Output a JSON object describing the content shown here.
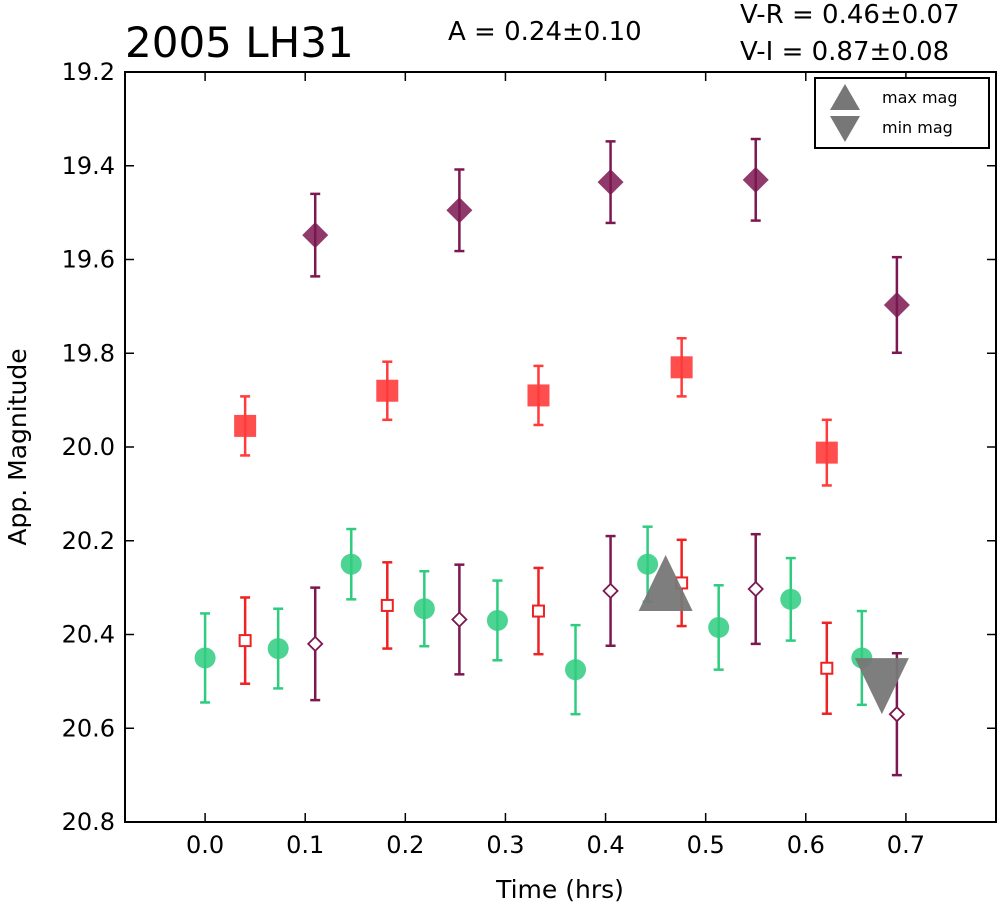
{
  "chart_data": {
    "type": "scatter",
    "title": "2005 LH31",
    "annotations": {
      "amplitude": "A  = 0.24±0.10",
      "color_vr": "V-R = 0.46±0.07",
      "color_vi": "V-I  = 0.87±0.08"
    },
    "xlabel": "Time (hrs)",
    "ylabel": "App. Magnitude",
    "xlim": [
      -0.08,
      0.79
    ],
    "ylim": [
      20.8,
      19.2
    ],
    "y_inverted": true,
    "grid": false,
    "legend_position": "top-right",
    "x_ticks": [
      "0.0",
      "0.1",
      "0.2",
      "0.3",
      "0.4",
      "0.5",
      "0.6",
      "0.7"
    ],
    "y_ticks": [
      "19.2",
      "19.4",
      "19.6",
      "19.8",
      "20.0",
      "20.2",
      "20.4",
      "20.6",
      "20.8"
    ],
    "legend": [
      {
        "label": "max mag",
        "marker": "triangle-up"
      },
      {
        "label": "min mag",
        "marker": "triangle-down"
      }
    ],
    "series": [
      {
        "key": "v_filter",
        "marker": "circle",
        "filled": true,
        "color": "#2ecc7f",
        "points": [
          {
            "x": 0.0,
            "y": 20.45,
            "err": 0.095
          },
          {
            "x": 0.073,
            "y": 20.43,
            "err": 0.085
          },
          {
            "x": 0.146,
            "y": 20.25,
            "err": 0.075
          },
          {
            "x": 0.219,
            "y": 20.345,
            "err": 0.08
          },
          {
            "x": 0.292,
            "y": 20.37,
            "err": 0.085
          },
          {
            "x": 0.37,
            "y": 20.475,
            "err": 0.095
          },
          {
            "x": 0.442,
            "y": 20.25,
            "err": 0.08
          },
          {
            "x": 0.513,
            "y": 20.385,
            "err": 0.09
          },
          {
            "x": 0.585,
            "y": 20.325,
            "err": 0.088
          },
          {
            "x": 0.656,
            "y": 20.45,
            "err": 0.1
          }
        ]
      },
      {
        "key": "r_filter_filled",
        "marker": "square",
        "filled": true,
        "color": "#ff3b3b",
        "points": [
          {
            "x": 0.04,
            "y": 19.955,
            "err": 0.063
          },
          {
            "x": 0.182,
            "y": 19.88,
            "err": 0.062
          },
          {
            "x": 0.333,
            "y": 19.89,
            "err": 0.063
          },
          {
            "x": 0.476,
            "y": 19.83,
            "err": 0.062
          },
          {
            "x": 0.621,
            "y": 20.012,
            "err": 0.07
          }
        ]
      },
      {
        "key": "r_filter_open",
        "marker": "square",
        "filled": false,
        "color": "#ee2222",
        "points": [
          {
            "x": 0.04,
            "y": 20.413,
            "err": 0.092
          },
          {
            "x": 0.182,
            "y": 20.338,
            "err": 0.092
          },
          {
            "x": 0.333,
            "y": 20.35,
            "err": 0.092
          },
          {
            "x": 0.476,
            "y": 20.29,
            "err": 0.092
          },
          {
            "x": 0.621,
            "y": 20.472,
            "err": 0.097
          }
        ]
      },
      {
        "key": "i_filter_filled",
        "marker": "diamond",
        "filled": true,
        "color": "#7b1850",
        "points": [
          {
            "x": 0.11,
            "y": 19.548,
            "err": 0.088
          },
          {
            "x": 0.254,
            "y": 19.495,
            "err": 0.087
          },
          {
            "x": 0.405,
            "y": 19.435,
            "err": 0.087
          },
          {
            "x": 0.55,
            "y": 19.43,
            "err": 0.087
          },
          {
            "x": 0.691,
            "y": 19.697,
            "err": 0.102
          }
        ]
      },
      {
        "key": "i_filter_open",
        "marker": "diamond",
        "filled": false,
        "color": "#7b1850",
        "points": [
          {
            "x": 0.11,
            "y": 20.42,
            "err": 0.12
          },
          {
            "x": 0.254,
            "y": 20.368,
            "err": 0.117
          },
          {
            "x": 0.405,
            "y": 20.307,
            "err": 0.117
          },
          {
            "x": 0.55,
            "y": 20.303,
            "err": 0.117
          },
          {
            "x": 0.691,
            "y": 20.57,
            "err": 0.13
          }
        ]
      }
    ],
    "extrema": [
      {
        "type": "max mag",
        "x": 0.46,
        "y": 20.29,
        "marker": "triangle-up",
        "color": "#777777"
      },
      {
        "type": "min mag",
        "x": 0.676,
        "y": 20.51,
        "marker": "triangle-down",
        "color": "#777777"
      }
    ]
  }
}
